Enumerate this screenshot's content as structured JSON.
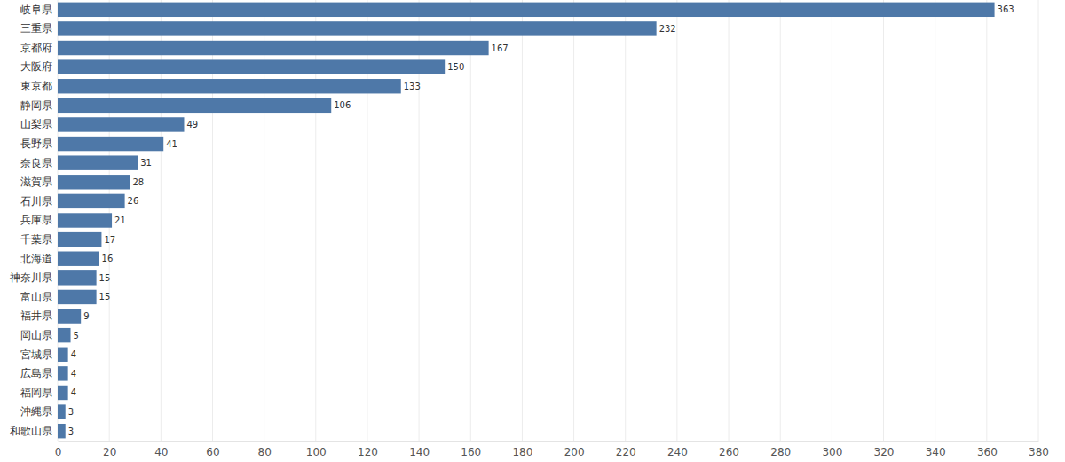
{
  "chart_data": {
    "type": "bar",
    "orientation": "horizontal",
    "categories": [
      "岐阜県",
      "三重県",
      "京都府",
      "大阪府",
      "東京都",
      "静岡県",
      "山梨県",
      "長野県",
      "奈良県",
      "滋賀県",
      "石川県",
      "兵庫県",
      "千葉県",
      "北海道",
      "神奈川県",
      "富山県",
      "福井県",
      "岡山県",
      "宮城県",
      "広島県",
      "福岡県",
      "沖縄県",
      "和歌山県"
    ],
    "values": [
      363,
      232,
      167,
      150,
      133,
      106,
      49,
      41,
      31,
      28,
      26,
      21,
      17,
      16,
      15,
      15,
      9,
      5,
      4,
      4,
      4,
      3,
      3
    ],
    "color": "#4e78a8",
    "xlim": [
      0,
      380
    ],
    "xticks": [
      0,
      20,
      40,
      60,
      80,
      100,
      120,
      140,
      160,
      180,
      200,
      220,
      240,
      260,
      280,
      300,
      320,
      340,
      360,
      380
    ],
    "grid": true,
    "data_labels": true
  }
}
